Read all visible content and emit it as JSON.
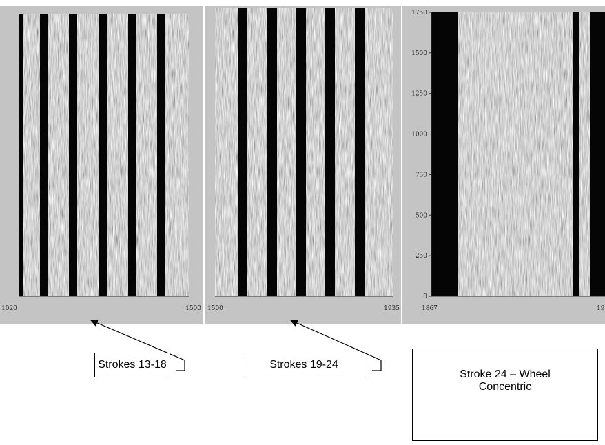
{
  "panels": [
    {
      "x_labels": [
        "1020",
        "1500"
      ]
    },
    {
      "x_labels": [
        "1500",
        "1935"
      ]
    },
    {
      "x_labels": [
        "1867",
        "19"
      ],
      "y_labels": [
        "0",
        "250",
        "500",
        "750",
        "1000",
        "1250",
        "1500",
        "1750"
      ]
    }
  ],
  "callouts": [
    {
      "text": "Strokes 13-18"
    },
    {
      "text": "Strokes 19-24"
    },
    {
      "text": "Stroke 24 – Wheel Concentric"
    }
  ]
}
